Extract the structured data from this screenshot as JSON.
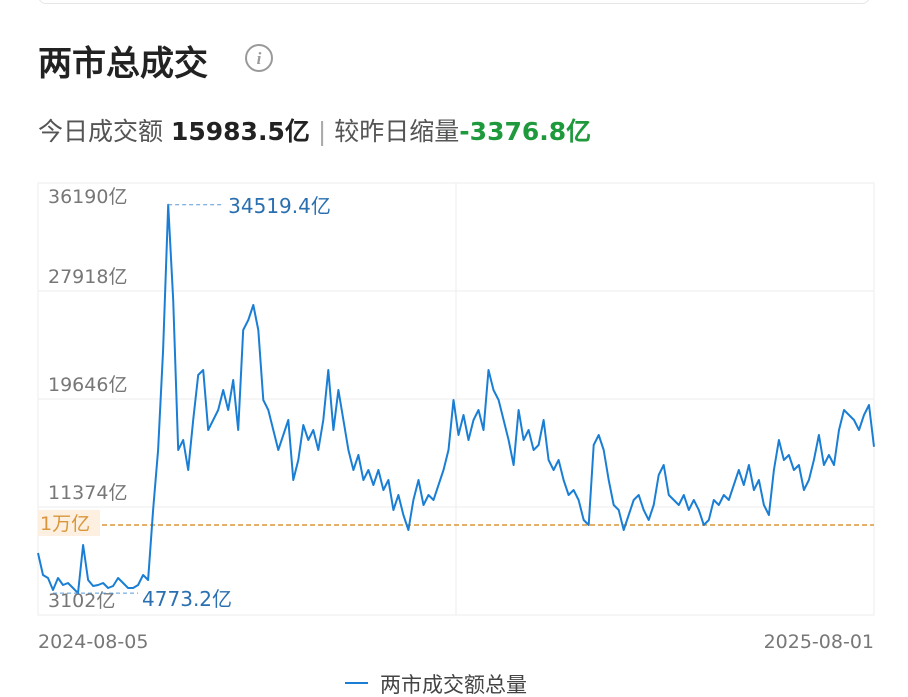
{
  "header": {
    "title": "两市总成交",
    "today_label": "今日成交额",
    "today_value": "15983.5亿",
    "separator": "|",
    "change_label": "较昨日缩量",
    "change_value": "-3376.8亿"
  },
  "chart_data": {
    "type": "line",
    "categories": [
      "2024-08-05",
      null,
      null,
      null,
      null,
      null,
      null,
      null,
      null,
      null,
      null,
      null,
      null,
      null,
      null,
      null,
      null,
      null,
      null,
      null,
      null,
      null,
      null,
      null,
      null,
      null,
      null,
      null,
      null,
      null,
      null,
      null,
      null,
      null,
      null,
      null,
      null,
      null,
      null,
      null,
      null,
      null,
      null,
      null,
      null,
      null,
      null,
      null,
      null,
      null,
      null,
      null,
      null,
      null,
      null,
      null,
      null,
      null,
      null,
      null,
      null,
      null,
      null,
      null,
      null,
      null,
      null,
      null,
      null,
      null,
      null,
      null,
      null,
      null,
      null,
      null,
      null,
      null,
      null,
      null,
      null,
      null,
      null,
      null,
      null,
      null,
      null,
      null,
      null,
      null,
      null,
      null,
      null,
      null,
      null,
      null,
      null,
      null,
      null,
      null,
      null,
      null,
      null,
      null,
      null,
      null,
      null,
      null,
      null,
      null,
      null,
      null,
      null,
      null,
      null,
      null,
      null,
      null,
      null,
      null,
      null,
      null,
      null,
      null,
      null,
      null,
      null,
      null,
      null,
      null,
      null,
      null,
      null,
      null,
      null,
      null,
      null,
      null,
      null,
      null,
      null,
      null,
      null,
      null,
      null,
      null,
      null,
      null,
      null,
      null,
      null,
      null,
      null,
      null,
      null,
      null,
      null,
      null,
      null,
      null,
      null,
      null,
      null,
      null,
      null,
      null,
      null,
      "2025-08-01"
    ],
    "series": [
      {
        "name": "两市成交额总量",
        "color": "#1a7fd4",
        "values": [
          7851,
          6166,
          5936,
          5017,
          5936,
          5400,
          5553,
          5170,
          4773.2,
          8463,
          5783,
          5323,
          5400,
          5553,
          5170,
          5323,
          5936,
          5553,
          5170,
          5170,
          5400,
          6166,
          5783,
          11144,
          15739,
          23398,
          34519.4,
          27228,
          15739,
          16505,
          14208,
          18037,
          21484,
          21867,
          17271,
          18037,
          18803,
          20335,
          18803,
          21101,
          17271,
          24930,
          25696,
          26845,
          24930,
          19569,
          18803,
          17271,
          15739,
          16888,
          18037,
          13442,
          14973,
          17654,
          16505,
          17271,
          15739,
          18037,
          21867,
          17271,
          20335,
          18037,
          15739,
          14208,
          15356,
          13442,
          14208,
          13059,
          14208,
          12676,
          13442,
          11144,
          12293,
          10761,
          9612,
          11910,
          13442,
          11527,
          12293,
          11910,
          13059,
          14208,
          15739,
          19569,
          16888,
          18420,
          16505,
          18037,
          18803,
          17271,
          21867,
          20335,
          19569,
          18037,
          16505,
          14591,
          18803,
          16505,
          17271,
          15739,
          16122,
          18037,
          14973,
          14208,
          14973,
          13442,
          12293,
          12676,
          11910,
          10378,
          9995,
          16122,
          16888,
          15739,
          13442,
          11527,
          11144,
          9612,
          10761,
          11910,
          12293,
          11144,
          10378,
          11527,
          13825,
          14591,
          12293,
          11910,
          11527,
          12293,
          11144,
          11910,
          11144,
          9995,
          10378,
          11910,
          11527,
          12293,
          11910,
          13059,
          14208,
          13059,
          14591,
          12676,
          13442,
          11527,
          10761,
          14208,
          16505,
          14973,
          15356,
          14208,
          14591,
          12676,
          13442,
          14973,
          16888,
          14591,
          15356,
          14591,
          17271,
          18803,
          18420,
          18037,
          17271,
          18420,
          19186,
          15983.5
        ]
      }
    ],
    "ylim": [
      3102,
      36190
    ],
    "yticks": [
      {
        "value": 3102,
        "label": "3102亿"
      },
      {
        "value": 11374,
        "label": "11374亿"
      },
      {
        "value": 19646,
        "label": "19646亿"
      },
      {
        "value": 27918,
        "label": "27918亿"
      },
      {
        "value": 36190,
        "label": "36190亿"
      }
    ],
    "grid": true,
    "reference_line": {
      "value": 10000,
      "label": "1万亿",
      "color": "#d9963a"
    },
    "annotations": [
      {
        "value": 34519.4,
        "label": "34519.4亿"
      },
      {
        "value": 4773.2,
        "label": "4773.2亿"
      }
    ]
  }
}
